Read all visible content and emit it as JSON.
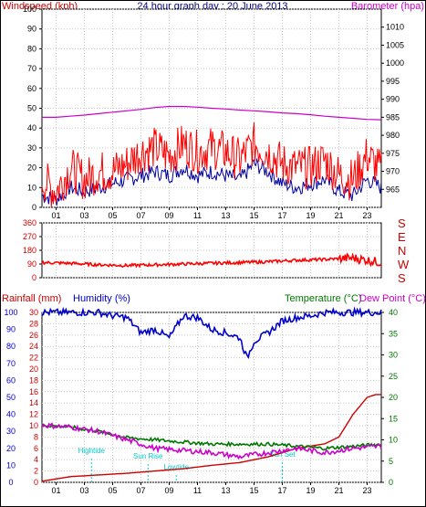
{
  "title": "24 hour graph day : 20 June 2013",
  "colors": {
    "wind": "#ff0000",
    "wind_avg": "#0000a0",
    "baro": "#cc00cc",
    "rain": "#cc0000",
    "humidity": "#0000cc",
    "temperature": "#007700",
    "dewpoint": "#cc00cc",
    "astro": "#00cccc",
    "grid": "#c8c8c8"
  },
  "chart_data": [
    {
      "type": "line",
      "panel": "wind_baro",
      "title": "24 hour graph day : 20 June 2013",
      "left_label": "Windspeed (kph)",
      "right_label": "Barometer (hpa)",
      "ylim": [
        0,
        100
      ],
      "y2lim": [
        960,
        1015
      ],
      "yticks": [
        "0",
        "10",
        "20",
        "30",
        "40",
        "50",
        "60",
        "70",
        "80",
        "90",
        "100"
      ],
      "y2ticks": [
        "965",
        "970",
        "975",
        "980",
        "985",
        "990",
        "995",
        "1000",
        "1005",
        "1010"
      ],
      "xticks": [
        "01",
        "03",
        "05",
        "07",
        "09",
        "11",
        "13",
        "15",
        "17",
        "19",
        "21",
        "23"
      ],
      "series": [
        {
          "name": "Windspeed gust",
          "x": [
            0,
            1,
            2,
            3,
            4,
            5,
            6,
            7,
            8,
            9,
            10,
            11,
            12,
            13,
            14,
            15,
            16,
            17,
            18,
            19,
            20,
            21,
            22,
            23,
            24
          ],
          "values": [
            14,
            8,
            20,
            14,
            18,
            18,
            22,
            28,
            30,
            26,
            32,
            28,
            30,
            28,
            24,
            32,
            28,
            22,
            20,
            20,
            24,
            16,
            14,
            26,
            18
          ]
        },
        {
          "name": "Windspeed avg",
          "x": [
            0,
            1,
            2,
            3,
            4,
            5,
            6,
            7,
            8,
            9,
            10,
            11,
            12,
            13,
            14,
            15,
            16,
            17,
            18,
            19,
            20,
            21,
            22,
            23,
            24
          ],
          "values": [
            6,
            4,
            10,
            8,
            10,
            12,
            14,
            16,
            18,
            16,
            20,
            16,
            18,
            16,
            14,
            22,
            18,
            12,
            10,
            12,
            14,
            8,
            6,
            14,
            10
          ]
        },
        {
          "name": "Barometer",
          "x": [
            0,
            1,
            2,
            3,
            4,
            5,
            6,
            7,
            8,
            9,
            10,
            11,
            12,
            13,
            14,
            15,
            16,
            17,
            18,
            19,
            20,
            21,
            22,
            23,
            24
          ],
          "values": [
            985,
            985,
            985.3,
            985.6,
            986,
            986.4,
            986.8,
            987.2,
            987.7,
            988,
            988,
            987.8,
            987.5,
            987.3,
            987,
            986.8,
            986.5,
            986.2,
            986,
            985.7,
            985.3,
            985,
            984.7,
            984.4,
            984.3
          ]
        }
      ]
    },
    {
      "type": "line",
      "panel": "wind_direction",
      "ylim": [
        0,
        360
      ],
      "yticks": [
        "0",
        "90",
        "180",
        "270",
        "360"
      ],
      "right_labels": [
        "S",
        "E",
        "N",
        "W",
        "S"
      ],
      "series": [
        {
          "name": "Wind direction",
          "x": [
            0,
            2,
            4,
            6,
            8,
            10,
            12,
            14,
            16,
            18,
            20,
            22,
            24
          ],
          "values": [
            100,
            95,
            85,
            80,
            85,
            90,
            95,
            100,
            105,
            115,
            120,
            130,
            100
          ]
        }
      ]
    },
    {
      "type": "line",
      "panel": "rain_hum_temp",
      "left_label": "Rainfall (mm)",
      "left2_label": "Humidity (%)",
      "right_label": "Temperature (°C)",
      "right2_label": "Dew Point (°C)",
      "rain_ticks": [
        "0",
        "2",
        "4",
        "6",
        "8",
        "10",
        "12",
        "14",
        "16",
        "18",
        "20",
        "22",
        "24",
        "26",
        "28",
        "30"
      ],
      "hum_ticks": [
        "0",
        "10",
        "20",
        "30",
        "40",
        "50",
        "60",
        "70",
        "80",
        "90",
        "100"
      ],
      "temp_ticks": [
        "0",
        "5",
        "10",
        "15",
        "20",
        "25",
        "30",
        "35",
        "40"
      ],
      "xticks": [
        "01",
        "03",
        "05",
        "07",
        "09",
        "11",
        "13",
        "15",
        "17",
        "19",
        "21",
        "23"
      ],
      "annotations": [
        "Hightide",
        "Sun Rise",
        "Lowtide",
        "Sun Set"
      ],
      "series": [
        {
          "name": "Rainfall",
          "x": [
            0,
            2,
            4,
            6,
            8,
            10,
            12,
            14,
            16,
            18,
            20,
            21,
            22,
            23,
            23.6,
            24
          ],
          "values": [
            0.2,
            1,
            1.3,
            1.6,
            2,
            2.4,
            3,
            3.5,
            4.5,
            6,
            6.8,
            8,
            12,
            15,
            15.5,
            15.5
          ]
        },
        {
          "name": "Humidity",
          "x": [
            0,
            2,
            4,
            5,
            6,
            7,
            8,
            9,
            10,
            11,
            12,
            13,
            14,
            14.5,
            15,
            16,
            17,
            18,
            19,
            20,
            21,
            22,
            23,
            24
          ],
          "values": [
            100,
            100,
            100,
            98,
            97,
            88,
            90,
            85,
            98,
            97,
            90,
            88,
            85,
            73,
            83,
            88,
            95,
            97,
            98,
            100,
            100,
            100,
            100,
            100
          ]
        },
        {
          "name": "Temperature",
          "x": [
            0,
            2,
            4,
            6,
            8,
            10,
            12,
            14,
            16,
            18,
            20,
            22,
            24
          ],
          "values": [
            13.5,
            13,
            12,
            10.5,
            10,
            9.5,
            9,
            9,
            9,
            8.5,
            8,
            8.5,
            9
          ]
        },
        {
          "name": "Dew Point",
          "x": [
            0,
            2,
            4,
            6,
            8,
            10,
            12,
            14,
            16,
            18,
            20,
            22,
            24
          ],
          "values": [
            13.5,
            13,
            12,
            10,
            8,
            7.5,
            7,
            6,
            7,
            8,
            7,
            8,
            8.5
          ]
        }
      ]
    }
  ]
}
